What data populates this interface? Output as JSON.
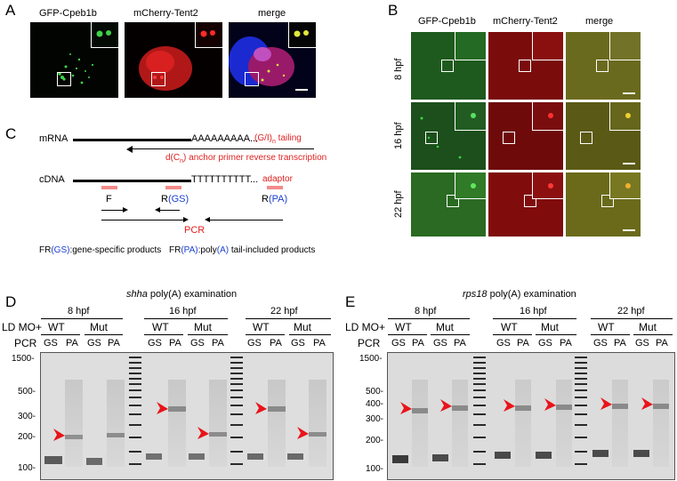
{
  "panelA": {
    "label": "A",
    "headers": [
      "GFP-Cpeb1b",
      "mCherry-Tent2",
      "merge"
    ]
  },
  "panelB": {
    "label": "B",
    "headers": [
      "GFP-Cpeb1b",
      "mCherry-Tent2",
      "merge"
    ],
    "rows": [
      "8 hpf",
      "16 hpf",
      "22 hpf"
    ]
  },
  "panelC": {
    "label": "C",
    "mrna_label": "mRNA",
    "polyA": "AAAAAAAAA...",
    "tailing": "(G/I)",
    "tailing_sub": "n",
    "tailing_suffix": " tailing",
    "anchor_text": "d(C",
    "anchor_sub": "n",
    "anchor_suffix": ") anchor primer reverse transcription",
    "cdna_label": "cDNA",
    "polyT": "TTTTTTTTTT...",
    "adaptor": "adaptor",
    "primer_F": "F",
    "primer_RGS_R": "R",
    "primer_RGS_GS": "(GS)",
    "primer_RPA_R": "R",
    "primer_RPA_PA": "(PA)",
    "pcr": "PCR",
    "legend1_a": "FR",
    "legend1_b": "(GS)",
    "legend1_c": ":gene-specific products",
    "legend2_a": "FR",
    "legend2_b": "(PA)",
    "legend2_c": ":poly",
    "legend2_d": "(A)",
    "legend2_e": " tail-included products"
  },
  "panelD": {
    "label": "D",
    "title_gene": "shha",
    "title_rest": " poly(A) examination",
    "row_ld": "LD MO+",
    "row_pcr": "PCR",
    "groups": [
      "8 hpf",
      "16 hpf",
      "22 hpf"
    ],
    "genotypes": [
      "WT",
      "Mut"
    ],
    "lanes": [
      "GS",
      "PA"
    ],
    "markers": [
      "1500-",
      "500-",
      "300-",
      "200-",
      "100-"
    ]
  },
  "panelE": {
    "label": "E",
    "title_gene": "rps18",
    "title_rest": " poly(A) examination",
    "row_ld": "LD MO+",
    "row_pcr": "PCR",
    "groups": [
      "8 hpf",
      "16 hpf",
      "22 hpf"
    ],
    "genotypes": [
      "WT",
      "Mut"
    ],
    "lanes": [
      "GS",
      "PA"
    ],
    "markers": [
      "1500-",
      "500-",
      "400-",
      "300-",
      "200-",
      "100-"
    ]
  },
  "colors": {
    "green": "#3fd24a",
    "red": "#e02424",
    "annotation_red": "#e02020",
    "annotation_blue": "#1a3fd0",
    "primer_pink": "#f28b8b"
  }
}
